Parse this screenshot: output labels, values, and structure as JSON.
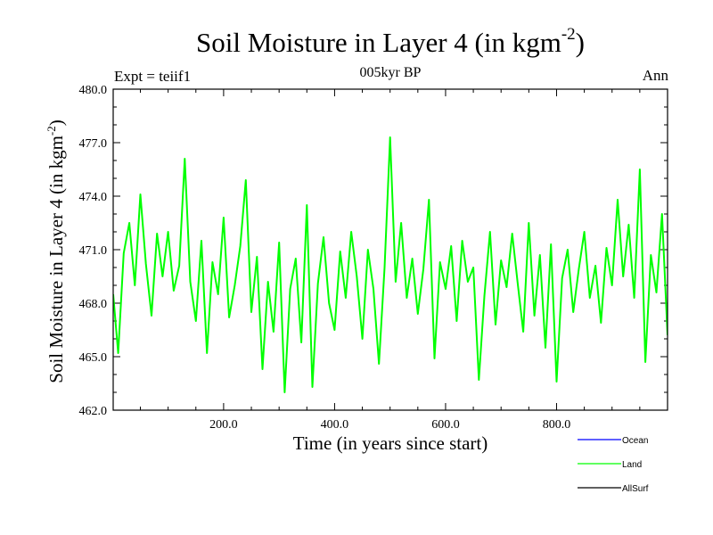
{
  "header": {
    "title_text": "Soil Moisture in Layer 4 (in kgm",
    "title_sup": "-2",
    "title_close": ")",
    "expt": "Expt = teiif1",
    "subtitle": "005kyr BP",
    "season": "Ann"
  },
  "chart_data": {
    "type": "line",
    "xlabel": "Time (in years since start)",
    "ylabel_text": "Soil Moisture in Layer 4 (in kgm",
    "ylabel_sup": "-2",
    "ylabel_close": ")",
    "xlim": [
      1,
      1000
    ],
    "ylim": [
      462.0,
      480.0
    ],
    "xticks": [
      200,
      400,
      600,
      800
    ],
    "xtick_labels": [
      "200.0",
      "400.0",
      "600.0",
      "800.0"
    ],
    "yticks": [
      462,
      465,
      468,
      471,
      474,
      477,
      480
    ],
    "ytick_labels": [
      "462.0",
      "465.0",
      "468.0",
      "471.0",
      "474.0",
      "477.0",
      "480.0"
    ],
    "legend_placement": "bottom-right, outside plot",
    "series": [
      {
        "name": "Ocean",
        "color": "#0000ff",
        "x": [],
        "y": []
      },
      {
        "name": "Land",
        "color": "#00ff00",
        "x": [
          1,
          10,
          20,
          30,
          40,
          50,
          60,
          70,
          80,
          90,
          100,
          110,
          120,
          130,
          140,
          150,
          160,
          170,
          180,
          190,
          200,
          210,
          220,
          230,
          240,
          250,
          260,
          270,
          280,
          290,
          300,
          310,
          320,
          330,
          340,
          350,
          360,
          370,
          380,
          390,
          400,
          410,
          420,
          430,
          440,
          450,
          460,
          470,
          480,
          490,
          500,
          510,
          520,
          530,
          540,
          550,
          560,
          570,
          580,
          590,
          600,
          610,
          620,
          630,
          640,
          650,
          660,
          670,
          680,
          690,
          700,
          710,
          720,
          730,
          740,
          750,
          760,
          770,
          780,
          790,
          800,
          810,
          820,
          830,
          840,
          850,
          860,
          870,
          880,
          890,
          900,
          910,
          920,
          930,
          940,
          950,
          960,
          970,
          980,
          990,
          1000
        ],
        "y": [
          468.5,
          465.2,
          470.8,
          472.5,
          469.0,
          474.1,
          470.2,
          467.3,
          471.9,
          469.5,
          472.0,
          468.7,
          470.1,
          476.1,
          469.2,
          467.0,
          471.5,
          465.2,
          470.3,
          468.5,
          472.8,
          467.2,
          469.0,
          471.2,
          474.9,
          467.5,
          470.6,
          464.3,
          469.2,
          466.4,
          471.4,
          463.0,
          468.8,
          470.5,
          465.8,
          473.5,
          463.3,
          469.1,
          471.7,
          468.0,
          466.5,
          470.9,
          468.3,
          472.0,
          469.5,
          466.0,
          471.0,
          468.8,
          464.6,
          470.0,
          477.3,
          469.2,
          472.5,
          468.3,
          470.5,
          467.4,
          469.9,
          473.8,
          464.9,
          470.3,
          468.8,
          471.2,
          467.0,
          471.5,
          469.2,
          470.0,
          463.7,
          468.4,
          472.0,
          466.8,
          470.4,
          468.9,
          471.9,
          469.1,
          466.4,
          472.5,
          467.3,
          470.7,
          465.5,
          471.3,
          463.6,
          469.4,
          471.0,
          467.5,
          469.9,
          472.0,
          468.3,
          470.1,
          466.9,
          471.1,
          469.0,
          473.8,
          469.5,
          472.4,
          468.3,
          475.5,
          464.7,
          470.7,
          468.6,
          473.0,
          466.2
        ]
      },
      {
        "name": "AllSurf",
        "color": "#000000",
        "x": [],
        "y": []
      }
    ]
  }
}
